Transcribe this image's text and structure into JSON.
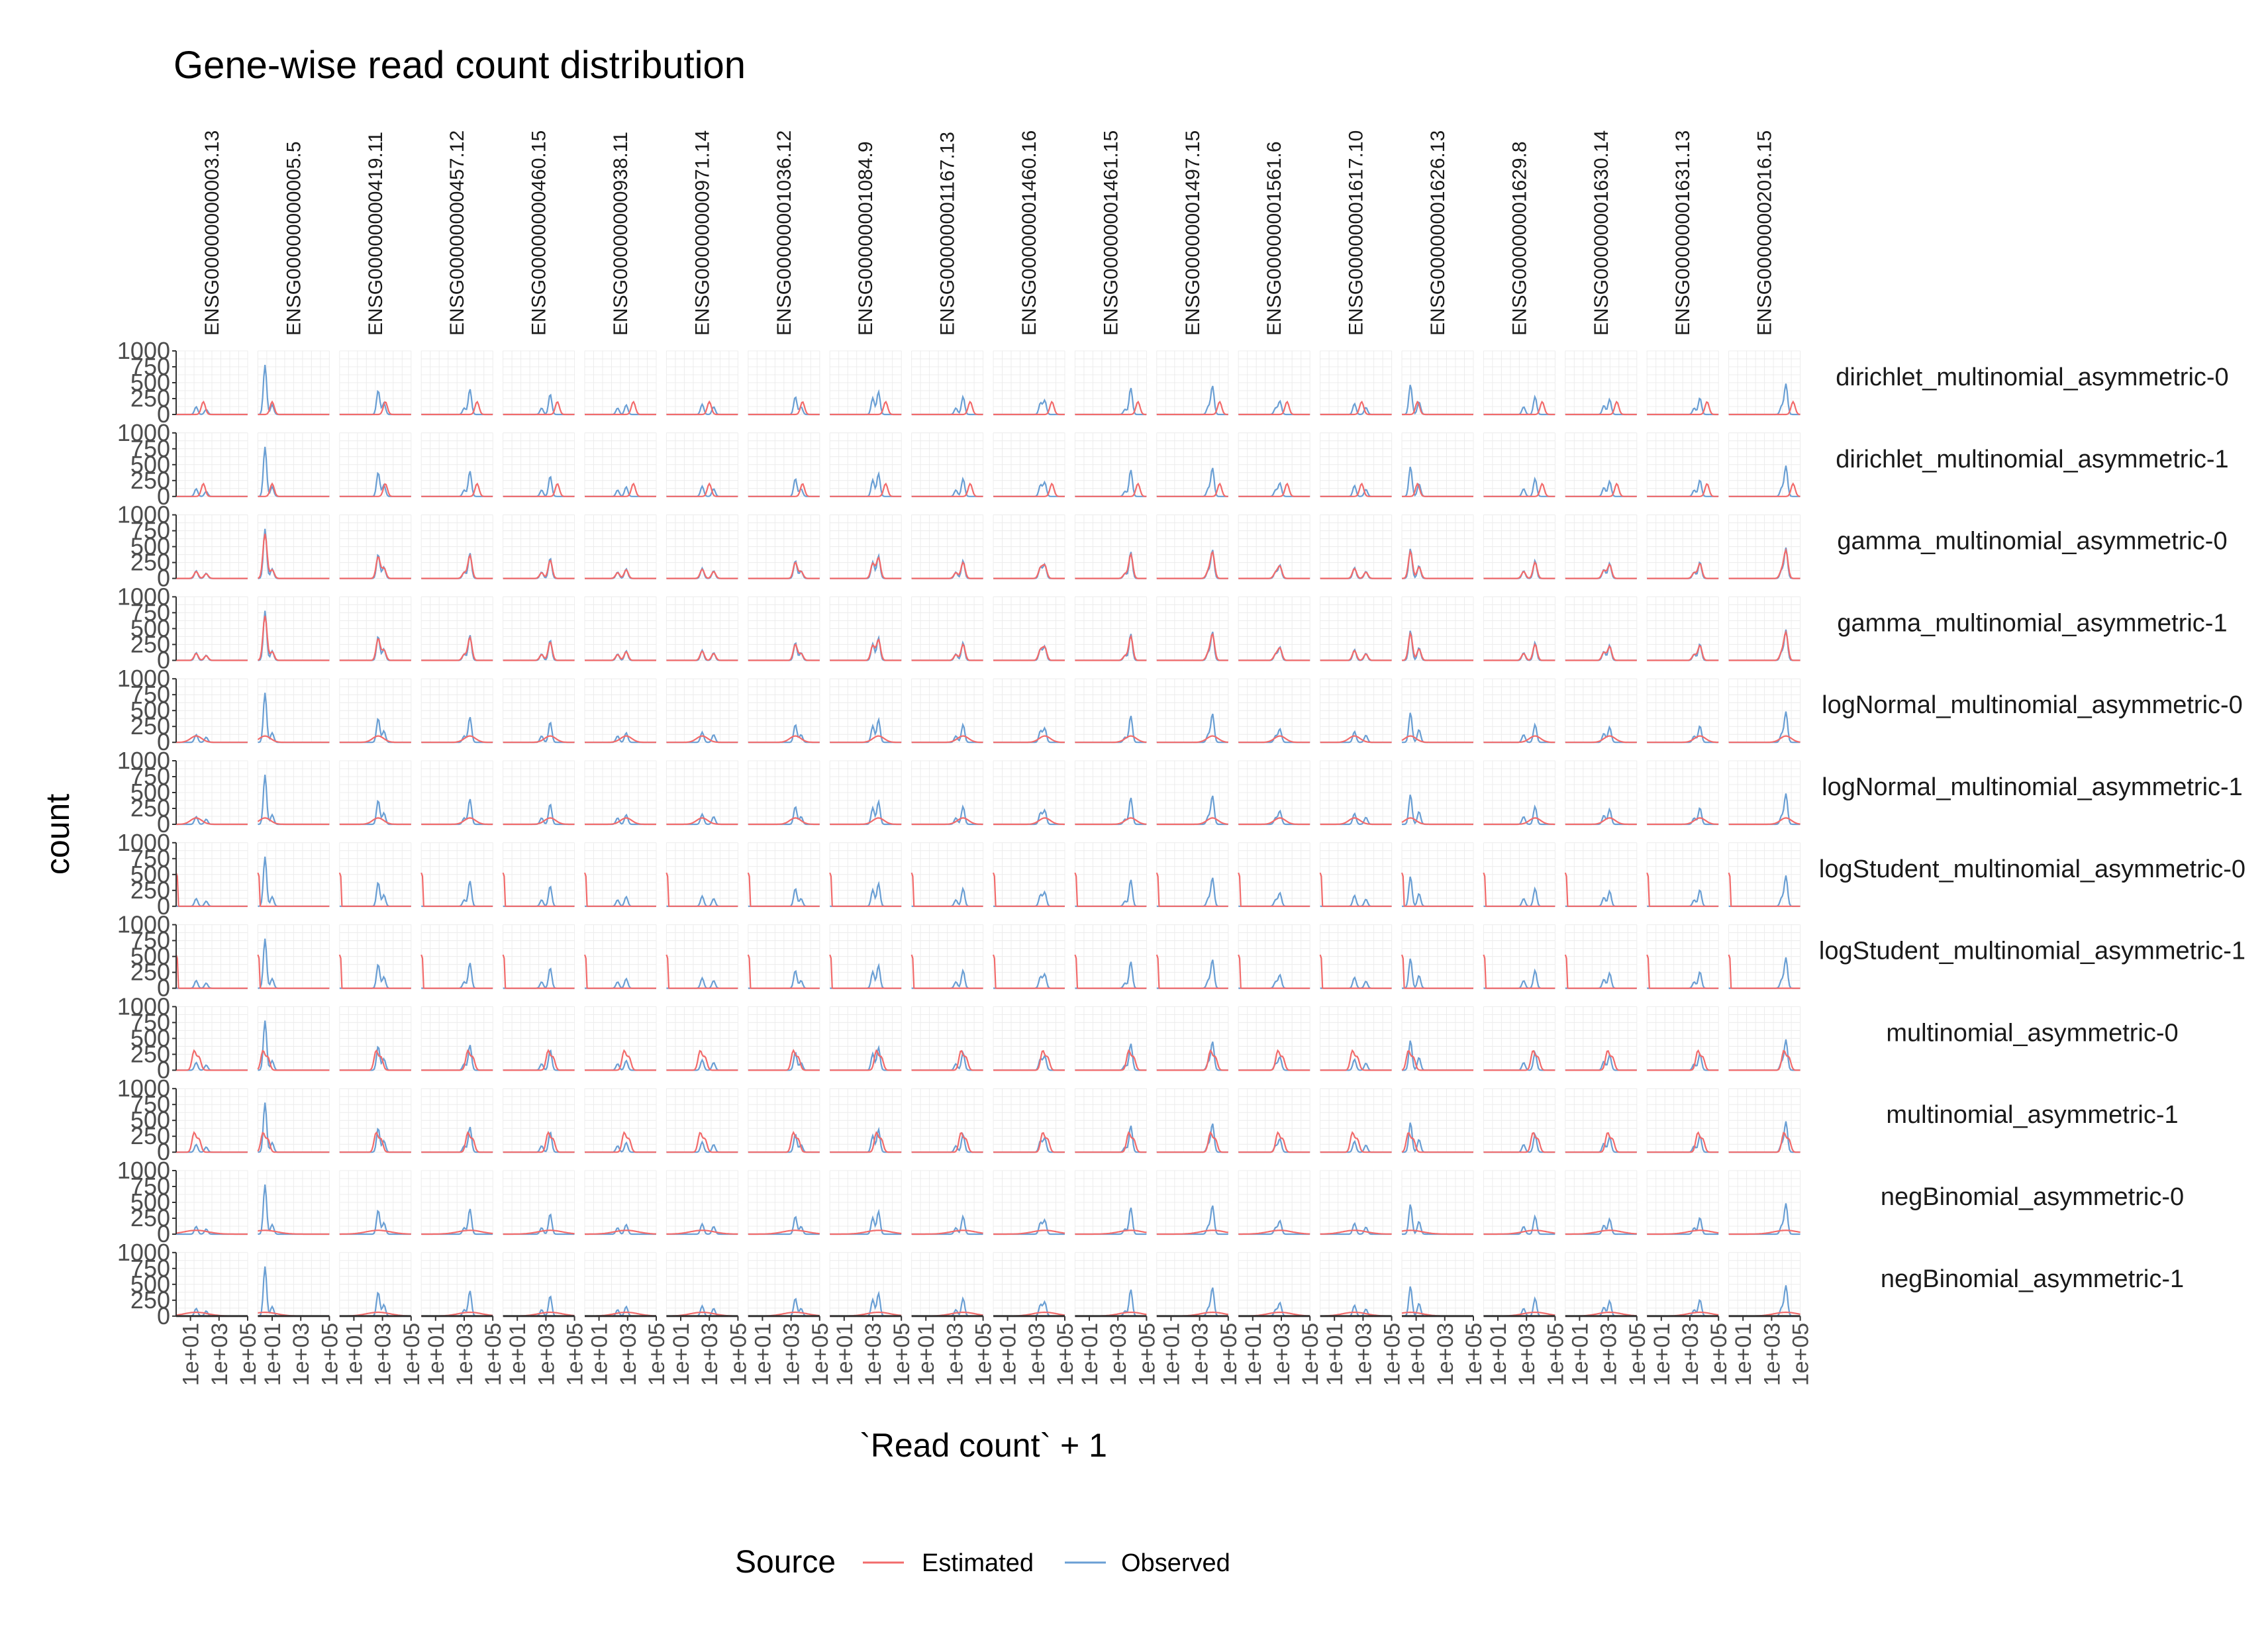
{
  "chart_data": {
    "type": "line",
    "title": "Gene-wise read count distribution",
    "xlabel": "`Read count` + 1",
    "ylabel": "count",
    "x_scale": "log10",
    "x_ticks": [
      "1e+01",
      "1e+03",
      "1e+05"
    ],
    "y_ticks": [
      "0",
      "250",
      "500",
      "750",
      "1000"
    ],
    "ylim": [
      0,
      1000
    ],
    "grid": true,
    "legend": {
      "title": "Source",
      "position": "bottom",
      "entries": [
        {
          "label": "Estimated",
          "color": "#f26b6b"
        },
        {
          "label": "Observed",
          "color": "#6a9fd4"
        }
      ]
    },
    "columns": [
      "ENSG00000000003.13",
      "ENSG00000000005.5",
      "ENSG00000000419.11",
      "ENSG00000000457.12",
      "ENSG00000000460.15",
      "ENSG00000000938.11",
      "ENSG00000000971.14",
      "ENSG00000001036.12",
      "ENSG00000001084.9",
      "ENSG00000001167.13",
      "ENSG00000001460.16",
      "ENSG00000001461.15",
      "ENSG00000001497.15",
      "ENSG00000001561.6",
      "ENSG00000001617.10",
      "ENSG00000001626.13",
      "ENSG00000001629.8",
      "ENSG00000001630.14",
      "ENSG00000001631.13",
      "ENSG00000002016.15"
    ],
    "rows": [
      "dirichlet_multinomial_asymmetric-0",
      "dirichlet_multinomial_asymmetric-1",
      "gamma_multinomial_asymmetric-0",
      "gamma_multinomial_asymmetric-1",
      "logNormal_multinomial_asymmetric-0",
      "logNormal_multinomial_asymmetric-1",
      "logStudent_multinomial_asymmetric-0",
      "logStudent_multinomial_asymmetric-1",
      "multinomial_asymmetric-0",
      "multinomial_asymmetric-1",
      "negBinomial_asymmetric-0",
      "negBinomial_asymmetric-1"
    ],
    "observed_peaks": [
      [
        [
          1.4,
          120
        ],
        [
          2.1,
          80
        ]
      ],
      [
        [
          0.5,
          780
        ],
        [
          1.0,
          150
        ]
      ],
      [
        [
          2.7,
          380
        ],
        [
          3.1,
          180
        ]
      ],
      [
        [
          3.4,
          400
        ],
        [
          3.0,
          100
        ]
      ],
      [
        [
          3.3,
          320
        ],
        [
          2.7,
          100
        ]
      ],
      [
        [
          2.9,
          150
        ],
        [
          2.3,
          100
        ]
      ],
      [
        [
          2.5,
          160
        ],
        [
          3.3,
          120
        ]
      ],
      [
        [
          3.3,
          280
        ],
        [
          3.7,
          120
        ]
      ],
      [
        [
          3.4,
          360
        ],
        [
          3.0,
          260
        ]
      ],
      [
        [
          3.6,
          280
        ],
        [
          3.1,
          100
        ]
      ],
      [
        [
          3.6,
          220
        ],
        [
          3.3,
          180
        ]
      ],
      [
        [
          3.9,
          420
        ],
        [
          3.5,
          80
        ]
      ],
      [
        [
          3.9,
          450
        ],
        [
          3.6,
          120
        ]
      ],
      [
        [
          2.9,
          210
        ],
        [
          2.6,
          100
        ]
      ],
      [
        [
          2.4,
          170
        ],
        [
          3.2,
          110
        ]
      ],
      [
        [
          0.6,
          470
        ],
        [
          1.2,
          200
        ]
      ],
      [
        [
          3.6,
          280
        ],
        [
          2.8,
          120
        ]
      ],
      [
        [
          3.1,
          240
        ],
        [
          2.7,
          140
        ]
      ],
      [
        [
          3.7,
          260
        ],
        [
          3.3,
          100
        ]
      ],
      [
        [
          4.0,
          480
        ],
        [
          3.7,
          130
        ]
      ]
    ],
    "estimated_models": {
      "dirichlet_multinomial_asymmetric": "shifted red peaks, about 200 high",
      "gamma_multinomial_asymmetric": "estimated follows observed",
      "logNormal_multinomial_asymmetric": "broad low red hump, about 100 high",
      "logStudent_multinomial_asymmetric": "red spike at the left edge to 1000",
      "multinomial_asymmetric": "narrow red peaks, about 300 high",
      "negBinomial_asymmetric": "flat red curve, about 60 high"
    }
  }
}
